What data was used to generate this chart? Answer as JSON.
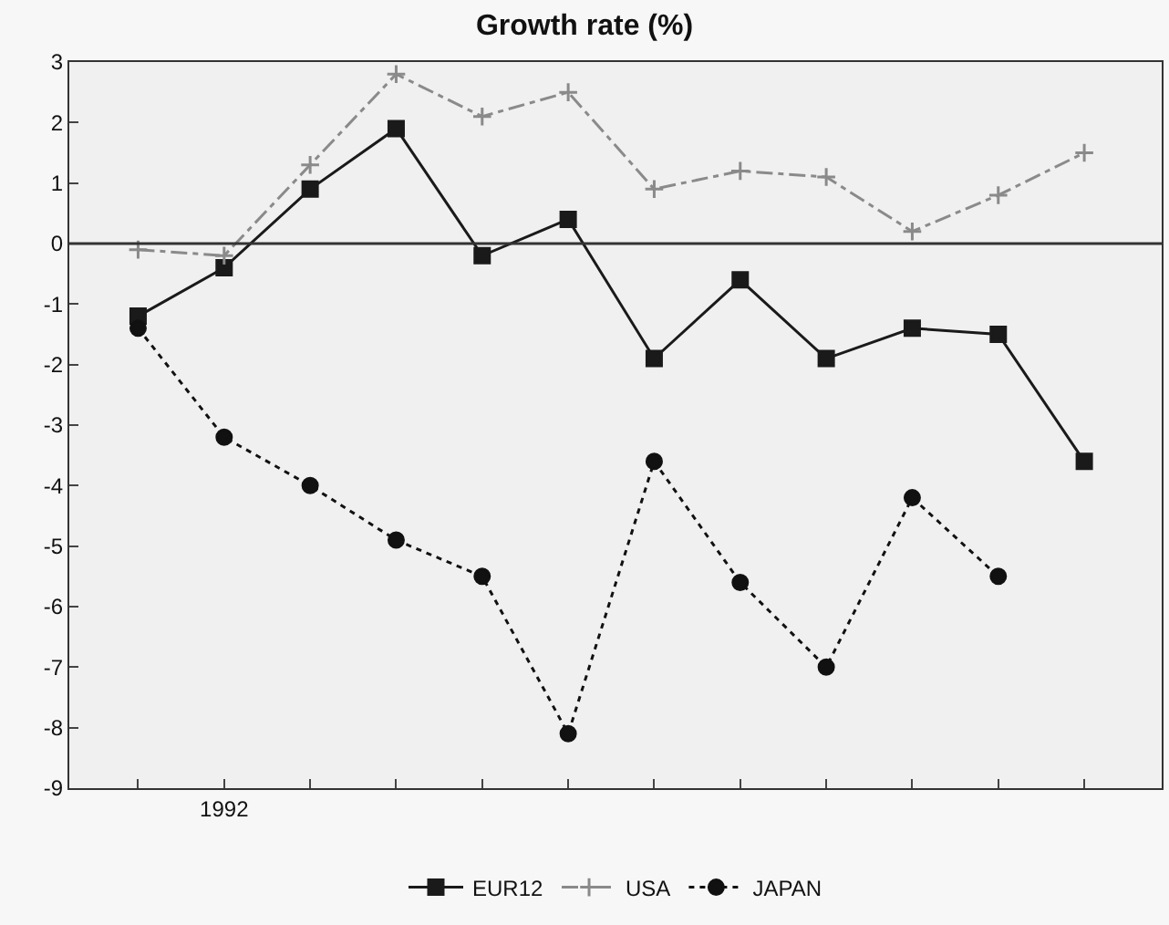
{
  "chart_data": {
    "type": "line",
    "title": "Growth rate (%)",
    "categories": [
      null,
      "1992",
      null,
      null,
      null,
      null,
      null,
      null,
      null,
      null,
      null,
      null
    ],
    "series": [
      {
        "name": "EUR12",
        "color": "#1a1a1a",
        "marker": "square",
        "line_style": "solid",
        "values": [
          -1.2,
          -0.4,
          0.9,
          1.9,
          -0.2,
          0.4,
          -1.9,
          -0.6,
          -1.9,
          -1.4,
          -1.5,
          -3.6
        ]
      },
      {
        "name": "USA",
        "color": "#8a8a8a",
        "marker": "cross",
        "line_style": "dashed",
        "values": [
          -0.1,
          -0.2,
          1.3,
          2.8,
          2.1,
          2.5,
          0.9,
          1.2,
          1.1,
          0.2,
          0.8,
          1.5
        ]
      },
      {
        "name": "JAPAN",
        "color": "#111111",
        "marker": "circle",
        "line_style": "dotted",
        "values": [
          -1.4,
          -3.2,
          -4.0,
          -4.9,
          -5.5,
          -8.1,
          -3.6,
          -5.6,
          -7.0,
          -4.2,
          -5.5,
          null
        ]
      }
    ],
    "ylim": [
      -9,
      3
    ],
    "yticks": [
      -9,
      -8,
      -7,
      -6,
      -5,
      -4,
      -3,
      -2,
      -1,
      0,
      1,
      2,
      3
    ],
    "ref_lines": [
      {
        "axis": "y",
        "value": 0,
        "color": "#333333",
        "line_style": "solid"
      }
    ],
    "grid": false,
    "legend": "bottom"
  }
}
